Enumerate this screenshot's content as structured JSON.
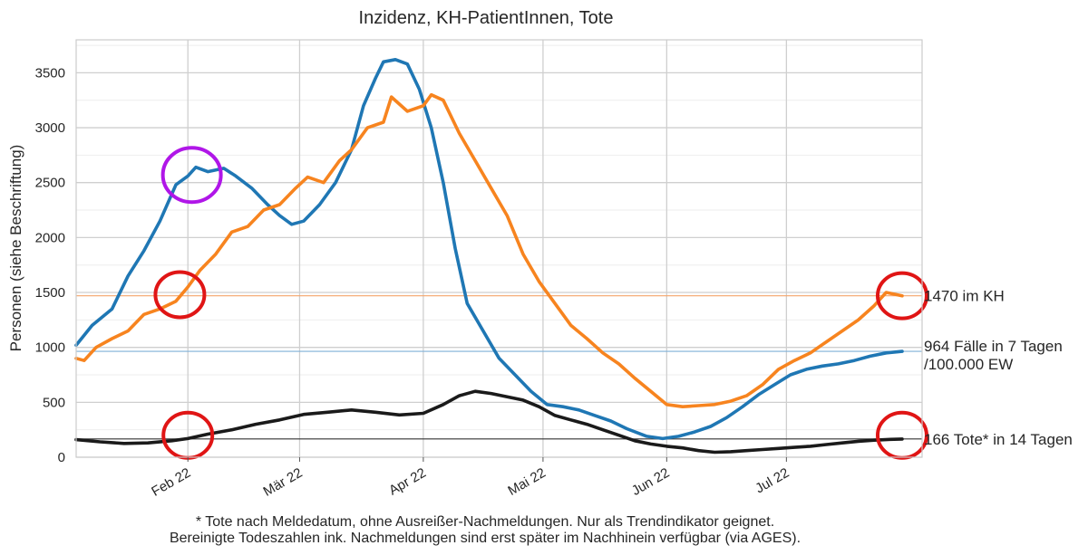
{
  "chart_data": {
    "type": "line",
    "title": "Inzidenz, KH-PatientInnen, Tote",
    "ylabel": "Personen (siehe Beschriftung)",
    "ylim": [
      0,
      3800
    ],
    "xlim": [
      "2022-01-04",
      "2022-08-04"
    ],
    "yticks": [
      0,
      500,
      1000,
      1500,
      2000,
      2500,
      3000,
      3500
    ],
    "xticks": [
      {
        "date": "2022-02-01",
        "label": "Feb 22"
      },
      {
        "date": "2022-03-01",
        "label": "Mär 22"
      },
      {
        "date": "2022-04-01",
        "label": "Apr 22"
      },
      {
        "date": "2022-05-01",
        "label": "Mai 22"
      },
      {
        "date": "2022-06-01",
        "label": "Jun 22"
      },
      {
        "date": "2022-07-01",
        "label": "Jul 22"
      }
    ],
    "grid": true,
    "series": [
      {
        "key": "incidence",
        "color": "#1f77b4",
        "points": [
          [
            "2022-01-04",
            1020
          ],
          [
            "2022-01-08",
            1200
          ],
          [
            "2022-01-13",
            1350
          ],
          [
            "2022-01-17",
            1650
          ],
          [
            "2022-01-21",
            1880
          ],
          [
            "2022-01-25",
            2150
          ],
          [
            "2022-01-29",
            2480
          ],
          [
            "2022-02-01",
            2560
          ],
          [
            "2022-02-03",
            2640
          ],
          [
            "2022-02-06",
            2600
          ],
          [
            "2022-02-10",
            2630
          ],
          [
            "2022-02-13",
            2560
          ],
          [
            "2022-02-17",
            2450
          ],
          [
            "2022-02-21",
            2300
          ],
          [
            "2022-02-24",
            2200
          ],
          [
            "2022-02-27",
            2120
          ],
          [
            "2022-03-02",
            2150
          ],
          [
            "2022-03-06",
            2300
          ],
          [
            "2022-03-10",
            2500
          ],
          [
            "2022-03-14",
            2800
          ],
          [
            "2022-03-17",
            3200
          ],
          [
            "2022-03-20",
            3450
          ],
          [
            "2022-03-22",
            3600
          ],
          [
            "2022-03-25",
            3620
          ],
          [
            "2022-03-28",
            3580
          ],
          [
            "2022-03-31",
            3350
          ],
          [
            "2022-04-03",
            3000
          ],
          [
            "2022-04-06",
            2500
          ],
          [
            "2022-04-09",
            1900
          ],
          [
            "2022-04-12",
            1400
          ],
          [
            "2022-04-16",
            1150
          ],
          [
            "2022-04-20",
            900
          ],
          [
            "2022-04-24",
            750
          ],
          [
            "2022-04-28",
            600
          ],
          [
            "2022-05-02",
            480
          ],
          [
            "2022-05-06",
            460
          ],
          [
            "2022-05-10",
            430
          ],
          [
            "2022-05-14",
            380
          ],
          [
            "2022-05-18",
            330
          ],
          [
            "2022-05-22",
            260
          ],
          [
            "2022-05-27",
            190
          ],
          [
            "2022-05-31",
            170
          ],
          [
            "2022-06-04",
            190
          ],
          [
            "2022-06-08",
            230
          ],
          [
            "2022-06-12",
            280
          ],
          [
            "2022-06-16",
            360
          ],
          [
            "2022-06-20",
            460
          ],
          [
            "2022-06-24",
            570
          ],
          [
            "2022-06-28",
            660
          ],
          [
            "2022-07-02",
            750
          ],
          [
            "2022-07-06",
            800
          ],
          [
            "2022-07-10",
            830
          ],
          [
            "2022-07-14",
            850
          ],
          [
            "2022-07-18",
            880
          ],
          [
            "2022-07-22",
            920
          ],
          [
            "2022-07-26",
            950
          ],
          [
            "2022-07-30",
            964
          ]
        ]
      },
      {
        "key": "hospital",
        "color": "#f7841f",
        "points": [
          [
            "2022-01-04",
            900
          ],
          [
            "2022-01-06",
            880
          ],
          [
            "2022-01-09",
            1000
          ],
          [
            "2022-01-13",
            1080
          ],
          [
            "2022-01-17",
            1150
          ],
          [
            "2022-01-21",
            1300
          ],
          [
            "2022-01-25",
            1350
          ],
          [
            "2022-01-29",
            1420
          ],
          [
            "2022-02-01",
            1550
          ],
          [
            "2022-02-04",
            1700
          ],
          [
            "2022-02-08",
            1850
          ],
          [
            "2022-02-12",
            2050
          ],
          [
            "2022-02-16",
            2100
          ],
          [
            "2022-02-20",
            2250
          ],
          [
            "2022-02-24",
            2300
          ],
          [
            "2022-02-28",
            2450
          ],
          [
            "2022-03-03",
            2550
          ],
          [
            "2022-03-07",
            2500
          ],
          [
            "2022-03-11",
            2700
          ],
          [
            "2022-03-14",
            2800
          ],
          [
            "2022-03-18",
            3000
          ],
          [
            "2022-03-22",
            3050
          ],
          [
            "2022-03-24",
            3280
          ],
          [
            "2022-03-28",
            3150
          ],
          [
            "2022-04-01",
            3200
          ],
          [
            "2022-04-03",
            3300
          ],
          [
            "2022-04-06",
            3250
          ],
          [
            "2022-04-10",
            2950
          ],
          [
            "2022-04-14",
            2700
          ],
          [
            "2022-04-18",
            2450
          ],
          [
            "2022-04-22",
            2200
          ],
          [
            "2022-04-26",
            1850
          ],
          [
            "2022-04-30",
            1600
          ],
          [
            "2022-05-04",
            1400
          ],
          [
            "2022-05-08",
            1200
          ],
          [
            "2022-05-12",
            1080
          ],
          [
            "2022-05-16",
            950
          ],
          [
            "2022-05-20",
            850
          ],
          [
            "2022-05-24",
            720
          ],
          [
            "2022-05-28",
            600
          ],
          [
            "2022-06-01",
            480
          ],
          [
            "2022-06-05",
            460
          ],
          [
            "2022-06-09",
            470
          ],
          [
            "2022-06-13",
            480
          ],
          [
            "2022-06-17",
            510
          ],
          [
            "2022-06-21",
            560
          ],
          [
            "2022-06-25",
            660
          ],
          [
            "2022-06-29",
            800
          ],
          [
            "2022-07-03",
            880
          ],
          [
            "2022-07-07",
            950
          ],
          [
            "2022-07-11",
            1050
          ],
          [
            "2022-07-15",
            1150
          ],
          [
            "2022-07-19",
            1250
          ],
          [
            "2022-07-23",
            1380
          ],
          [
            "2022-07-26",
            1500
          ],
          [
            "2022-07-30",
            1470
          ]
        ]
      },
      {
        "key": "deaths",
        "color": "#1a1a1a",
        "points": [
          [
            "2022-01-04",
            160
          ],
          [
            "2022-01-10",
            140
          ],
          [
            "2022-01-16",
            125
          ],
          [
            "2022-01-22",
            130
          ],
          [
            "2022-01-28",
            150
          ],
          [
            "2022-02-01",
            170
          ],
          [
            "2022-02-06",
            210
          ],
          [
            "2022-02-12",
            250
          ],
          [
            "2022-02-18",
            300
          ],
          [
            "2022-02-24",
            340
          ],
          [
            "2022-03-02",
            390
          ],
          [
            "2022-03-08",
            410
          ],
          [
            "2022-03-14",
            430
          ],
          [
            "2022-03-20",
            410
          ],
          [
            "2022-03-26",
            385
          ],
          [
            "2022-04-01",
            400
          ],
          [
            "2022-04-06",
            480
          ],
          [
            "2022-04-10",
            560
          ],
          [
            "2022-04-14",
            600
          ],
          [
            "2022-04-18",
            580
          ],
          [
            "2022-04-22",
            550
          ],
          [
            "2022-04-26",
            520
          ],
          [
            "2022-04-30",
            460
          ],
          [
            "2022-05-04",
            380
          ],
          [
            "2022-05-08",
            340
          ],
          [
            "2022-05-12",
            300
          ],
          [
            "2022-05-16",
            250
          ],
          [
            "2022-05-20",
            200
          ],
          [
            "2022-05-24",
            150
          ],
          [
            "2022-05-28",
            120
          ],
          [
            "2022-06-01",
            100
          ],
          [
            "2022-06-05",
            85
          ],
          [
            "2022-06-09",
            60
          ],
          [
            "2022-06-13",
            45
          ],
          [
            "2022-06-17",
            50
          ],
          [
            "2022-06-21",
            60
          ],
          [
            "2022-06-25",
            70
          ],
          [
            "2022-06-29",
            80
          ],
          [
            "2022-07-03",
            90
          ],
          [
            "2022-07-07",
            100
          ],
          [
            "2022-07-11",
            115
          ],
          [
            "2022-07-15",
            130
          ],
          [
            "2022-07-19",
            145
          ],
          [
            "2022-07-23",
            155
          ],
          [
            "2022-07-27",
            162
          ],
          [
            "2022-07-30",
            166
          ]
        ]
      }
    ],
    "reference_lines": [
      {
        "y": 1470,
        "color": "#f4a46a"
      },
      {
        "y": 964,
        "color": "#7fb1d8"
      },
      {
        "y": 166,
        "color": "#333333"
      }
    ],
    "end_labels": [
      {
        "y": 1470,
        "lines": [
          "1470 im KH"
        ]
      },
      {
        "y": 964,
        "lines": [
          "964 Fälle in 7 Tagen",
          "/100.000 EW"
        ]
      },
      {
        "y": 166,
        "lines": [
          "166 Tote* in 14 Tagen"
        ]
      }
    ],
    "highlight_circles": [
      {
        "date": "2022-02-02",
        "y": 2570,
        "color": "#b016e8"
      },
      {
        "date": "2022-01-30",
        "y": 1480,
        "color": "#e01515"
      },
      {
        "date": "2022-02-01",
        "y": 200,
        "color": "#e01515"
      },
      {
        "date": "2022-07-30",
        "y": 1470,
        "color": "#e01515"
      },
      {
        "date": "2022-07-30",
        "y": 200,
        "color": "#e01515"
      }
    ],
    "footnote": [
      "* Tote nach Meldedatum, ohne Ausreißer-Nachmeldungen. Nur als Trendindikator geignet.",
      "Bereinigte Todeszahlen ink. Nachmeldungen sind erst später im Nachhinein verfügbar (via AGES)."
    ]
  }
}
